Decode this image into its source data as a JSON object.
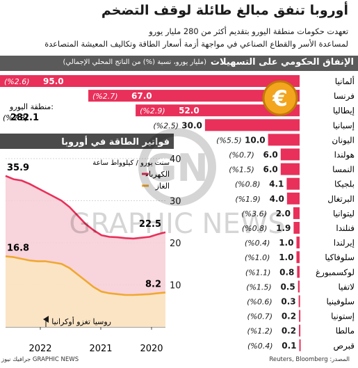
{
  "title": "أوروبا تنفق مبالغ طائلة لوقف التضخم",
  "subtitle_line1": "تعهدت حكومات منطقة اليورو بتقديم أكثر من 280 مليار يورو",
  "subtitle_line2": "لمساعدة الأسر والقطاع الصناعي في مواجهة أزمة أسعار الطاقة وتكاليف المعيشة المتصاعدة",
  "bar_section": {
    "title": "الإنفاق الحكومي على التسهيلات",
    "unit": "(مليار يورو، نسبة (%) من الناتج المحلي الإجمالي)"
  },
  "eurozone": {
    "label": "منطقة اليورو:",
    "value": "282.1",
    "pct": "(%2.3)"
  },
  "euro_icon": "euro-coin-icon",
  "chart_data": [
    {
      "type": "bar",
      "orientation": "horizontal",
      "title": "الإنفاق الحكومي على التسهيلات",
      "categories": [
        "ألمانيا",
        "فرنسا",
        "إيطاليا",
        "إسبانيا",
        "اليونان",
        "هولندا",
        "النمسا",
        "بلجيكا",
        "البرتغال",
        "ليتوانيا",
        "فنلندا",
        "إيرلندا",
        "سلوفاكيا",
        "لوكسمبورغ",
        "لاتفيا",
        "سلوفينيا",
        "إستونيا",
        "مالطا",
        "قبرص"
      ],
      "values": [
        95.0,
        67.0,
        52.0,
        30.0,
        10.0,
        6.0,
        6.0,
        4.1,
        4.0,
        2.0,
        1.9,
        1.0,
        1.0,
        0.8,
        0.5,
        0.3,
        0.2,
        0.2,
        0.1
      ],
      "value_labels": [
        "95.0",
        "67.0",
        "52.0",
        "30.0",
        "10.0",
        "6.0",
        "6.0",
        "4.1",
        "4.0",
        "2.0",
        "1.9",
        "1.0",
        "1.0",
        "0.8",
        "0.5",
        "0.3",
        "0.2",
        "0.2",
        "0.1"
      ],
      "pct_labels": [
        "(%2.6)",
        "(%2.7)",
        "(%2.9)",
        "(%2.5)",
        "(%5.5)",
        "(%0.7)",
        "(%1.5)",
        "(%0.8)",
        "(%1.9)",
        "(%3.6)",
        "(%0.8)",
        "(%0.4)",
        "(%1.0)",
        "(%1.1)",
        "(%1.5)",
        "(%0.6)",
        "(%0.7)",
        "(%1.2)",
        "(%0.4)"
      ],
      "bar_color": "#e8305a",
      "xlim": [
        0,
        95
      ]
    },
    {
      "type": "line",
      "title": "فواتير الطاقة في أوروبا",
      "ylabel": "سنت يورو / كيلوواط ساعة",
      "ylim": [
        0,
        40
      ],
      "y_ticks": [
        "40",
        "30",
        "20",
        "10"
      ],
      "x_ticks": [
        "2020",
        "2021",
        "2022"
      ],
      "annotation": "روسيا تغزو أوكرانيا",
      "series": [
        {
          "name": "الكهرباء",
          "color": "#e8305a",
          "start_label": "35.9",
          "end_label": "22.5",
          "values": [
            22.5,
            22.0,
            21.4,
            21.2,
            21.0,
            21.1,
            21.3,
            21.4,
            21.8,
            23.0,
            24.5,
            26.5,
            28.5,
            30.0,
            31.0,
            32.0,
            33.0,
            34.0,
            34.8,
            35.1,
            35.9
          ]
        },
        {
          "name": "الغاز",
          "color": "#f0a830",
          "start_label": "16.8",
          "end_label": "8.2",
          "values": [
            8.2,
            8.0,
            7.8,
            7.7,
            7.6,
            7.6,
            7.8,
            8.0,
            8.4,
            9.5,
            11.0,
            12.5,
            14.0,
            15.0,
            15.3,
            15.6,
            15.6,
            15.8,
            16.2,
            16.6,
            16.8
          ]
        }
      ]
    }
  ],
  "watermark": "GRAPHIC NEWS",
  "source": "المصدر: Reuters, Bloomberg",
  "credit": "جرافيك نيوز GRAPHIC NEWS"
}
